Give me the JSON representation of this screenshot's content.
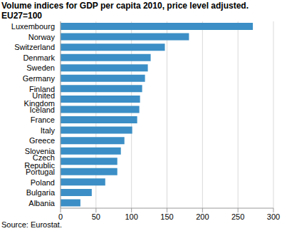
{
  "chart_data": {
    "type": "bar",
    "title": "Volume indices for GDP per capita 2010, price level adjusted.",
    "subtitle": "EU27=100",
    "annotations": [
      "Source: Eurostat."
    ],
    "orientation": "horizontal",
    "categories": [
      "Luxembourg",
      "Norway",
      "Switzerland",
      "Denmark",
      "Sweden",
      "Germany",
      "Finland",
      "United Kingdom",
      "Iceland",
      "France",
      "Italy",
      "Greece",
      "Slovenia",
      "Czech Republic",
      "Portugal",
      "Poland",
      "Bulgaria",
      "Albania"
    ],
    "values": [
      271,
      181,
      147,
      127,
      123,
      119,
      115,
      112,
      111,
      108,
      101,
      90,
      85,
      80,
      80,
      63,
      44,
      28
    ],
    "color": "#3b8fc6",
    "xlim": [
      0,
      300
    ],
    "xticks": [
      0,
      50,
      100,
      150,
      200,
      250,
      300
    ],
    "grid": true
  }
}
